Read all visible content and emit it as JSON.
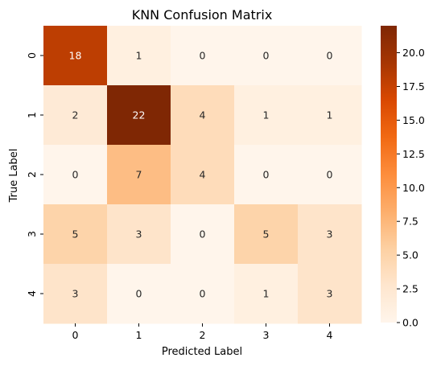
{
  "chart_data": {
    "type": "heatmap",
    "title": "KNN Confusion Matrix",
    "xlabel": "Predicted Label",
    "ylabel": "True Label",
    "x_categories": [
      "0",
      "1",
      "2",
      "3",
      "4"
    ],
    "y_categories": [
      "0",
      "1",
      "2",
      "3",
      "4"
    ],
    "values": [
      [
        18,
        1,
        0,
        0,
        0
      ],
      [
        2,
        22,
        4,
        1,
        1
      ],
      [
        0,
        7,
        4,
        0,
        0
      ],
      [
        5,
        3,
        0,
        5,
        3
      ],
      [
        3,
        0,
        0,
        1,
        3
      ]
    ],
    "colormap": "Oranges",
    "color_range": [
      0,
      22
    ],
    "colorbar": {
      "position": "right",
      "ticks": [
        0.0,
        2.5,
        5.0,
        7.5,
        10.0,
        12.5,
        15.0,
        17.5,
        20.0
      ],
      "tick_labels": [
        "0.0",
        "2.5",
        "5.0",
        "7.5",
        "10.0",
        "12.5",
        "15.0",
        "17.5",
        "20.0"
      ]
    },
    "annotated": true,
    "grid": false
  }
}
